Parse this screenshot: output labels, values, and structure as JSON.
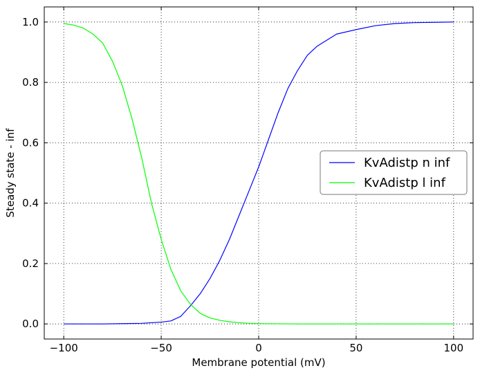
{
  "chart_data": {
    "type": "line",
    "title": "",
    "xlabel": "Membrane potential (mV)",
    "ylabel": "Steady state - inf",
    "xlim": [
      -110,
      110
    ],
    "ylim": [
      -0.05,
      1.05
    ],
    "xticks": [
      -100,
      -50,
      0,
      50,
      100
    ],
    "yticks": [
      0.0,
      0.2,
      0.4,
      0.6,
      0.8,
      1.0
    ],
    "xtick_labels": [
      "−100",
      "−50",
      "0",
      "50",
      "100"
    ],
    "ytick_labels": [
      "0.0",
      "0.2",
      "0.4",
      "0.6",
      "0.8",
      "1.0"
    ],
    "grid": true,
    "legend_position": "center-right",
    "series": [
      {
        "name": "KvAdistp n inf",
        "color": "#0000ff",
        "x": [
          -100,
          -90,
          -80,
          -70,
          -60,
          -50,
          -45,
          -40,
          -35,
          -30,
          -25,
          -20,
          -15,
          -10,
          -5,
          0,
          5,
          10,
          15,
          20,
          25,
          30,
          40,
          50,
          60,
          70,
          80,
          90,
          100
        ],
        "y": [
          0.0,
          0.0,
          0.0,
          0.001,
          0.002,
          0.006,
          0.01,
          0.025,
          0.06,
          0.1,
          0.15,
          0.21,
          0.28,
          0.36,
          0.44,
          0.52,
          0.61,
          0.7,
          0.78,
          0.84,
          0.89,
          0.92,
          0.96,
          0.975,
          0.988,
          0.995,
          0.998,
          0.999,
          1.0
        ]
      },
      {
        "name": "KvAdistp l inf",
        "color": "#00ff00",
        "x": [
          -100,
          -95,
          -90,
          -85,
          -80,
          -75,
          -70,
          -65,
          -60,
          -55,
          -50,
          -45,
          -40,
          -35,
          -30,
          -25,
          -20,
          -15,
          -10,
          -5,
          0,
          10,
          20,
          40,
          60,
          80,
          100
        ],
        "y": [
          0.995,
          0.99,
          0.98,
          0.96,
          0.93,
          0.87,
          0.79,
          0.68,
          0.55,
          0.4,
          0.28,
          0.18,
          0.11,
          0.065,
          0.035,
          0.02,
          0.012,
          0.007,
          0.004,
          0.002,
          0.001,
          0.0005,
          0.0,
          0.0,
          0.0,
          0.0,
          0.0
        ]
      }
    ]
  }
}
